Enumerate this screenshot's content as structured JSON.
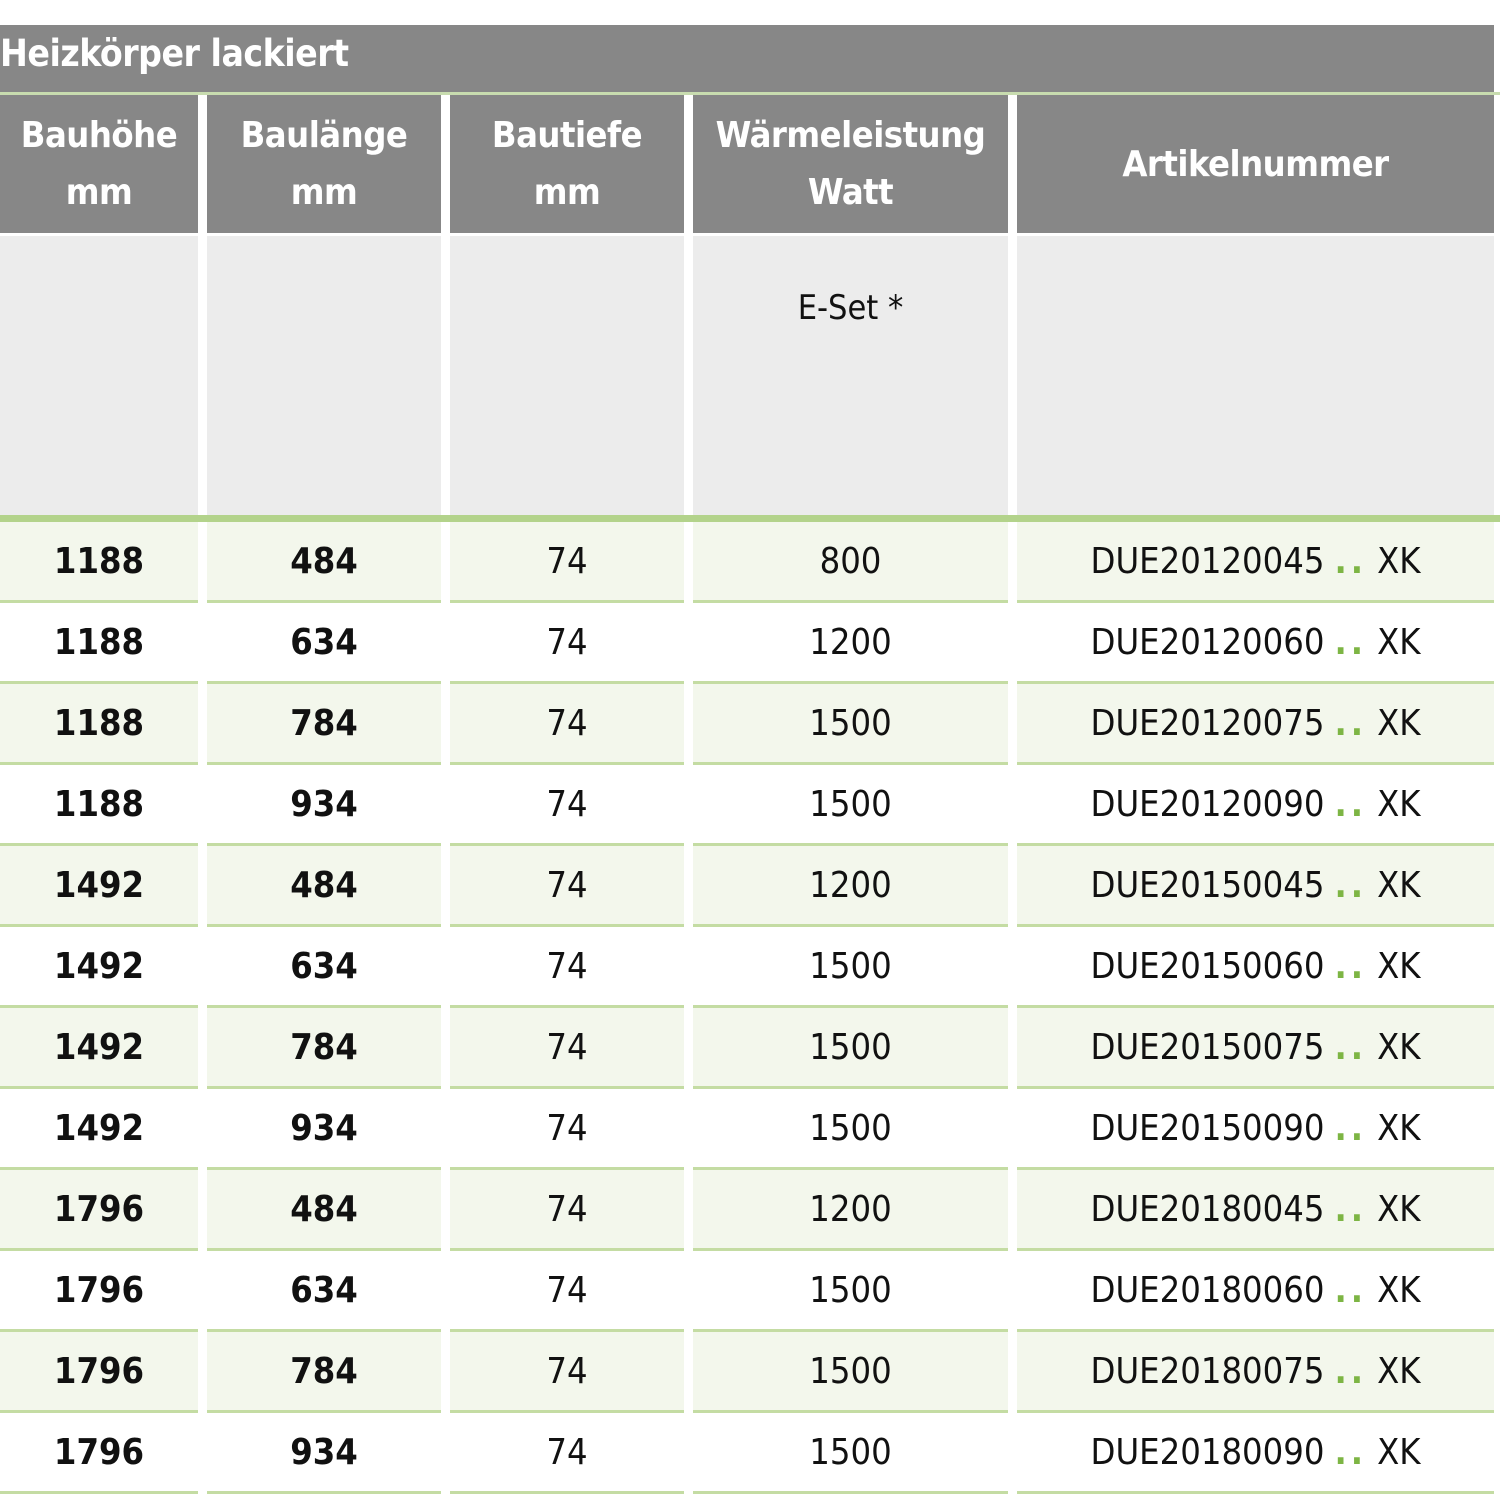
{
  "title": "Heizkörper lackiert",
  "columns": [
    {
      "line1": "Bauhöhe",
      "line2": "mm"
    },
    {
      "line1": "Baulänge",
      "line2": "mm"
    },
    {
      "line1": "Bautiefe",
      "line2": "mm"
    },
    {
      "line1": "Wärmeleistung",
      "line2": "Watt"
    },
    {
      "line1": "Artikelnummer",
      "line2": ""
    }
  ],
  "subheader": {
    "waermeleistung": "E-Set *"
  },
  "colors": {
    "header_gray": "#878787",
    "accent_green": "#7db544",
    "row_tint": "#f3f7ec"
  },
  "article_separator": "..",
  "rows": [
    {
      "hoehe": "1188",
      "laenge": "484",
      "tiefe": "74",
      "watt": "800",
      "artikel": "DUE20120045",
      "suffix": "XK"
    },
    {
      "hoehe": "1188",
      "laenge": "634",
      "tiefe": "74",
      "watt": "1200",
      "artikel": "DUE20120060",
      "suffix": "XK"
    },
    {
      "hoehe": "1188",
      "laenge": "784",
      "tiefe": "74",
      "watt": "1500",
      "artikel": "DUE20120075",
      "suffix": "XK"
    },
    {
      "hoehe": "1188",
      "laenge": "934",
      "tiefe": "74",
      "watt": "1500",
      "artikel": "DUE20120090",
      "suffix": "XK"
    },
    {
      "hoehe": "1492",
      "laenge": "484",
      "tiefe": "74",
      "watt": "1200",
      "artikel": "DUE20150045",
      "suffix": "XK"
    },
    {
      "hoehe": "1492",
      "laenge": "634",
      "tiefe": "74",
      "watt": "1500",
      "artikel": "DUE20150060",
      "suffix": "XK"
    },
    {
      "hoehe": "1492",
      "laenge": "784",
      "tiefe": "74",
      "watt": "1500",
      "artikel": "DUE20150075",
      "suffix": "XK"
    },
    {
      "hoehe": "1492",
      "laenge": "934",
      "tiefe": "74",
      "watt": "1500",
      "artikel": "DUE20150090",
      "suffix": "XK"
    },
    {
      "hoehe": "1796",
      "laenge": "484",
      "tiefe": "74",
      "watt": "1200",
      "artikel": "DUE20180045",
      "suffix": "XK"
    },
    {
      "hoehe": "1796",
      "laenge": "634",
      "tiefe": "74",
      "watt": "1500",
      "artikel": "DUE20180060",
      "suffix": "XK"
    },
    {
      "hoehe": "1796",
      "laenge": "784",
      "tiefe": "74",
      "watt": "1500",
      "artikel": "DUE20180075",
      "suffix": "XK"
    },
    {
      "hoehe": "1796",
      "laenge": "934",
      "tiefe": "74",
      "watt": "1500",
      "artikel": "DUE20180090",
      "suffix": "XK"
    }
  ]
}
